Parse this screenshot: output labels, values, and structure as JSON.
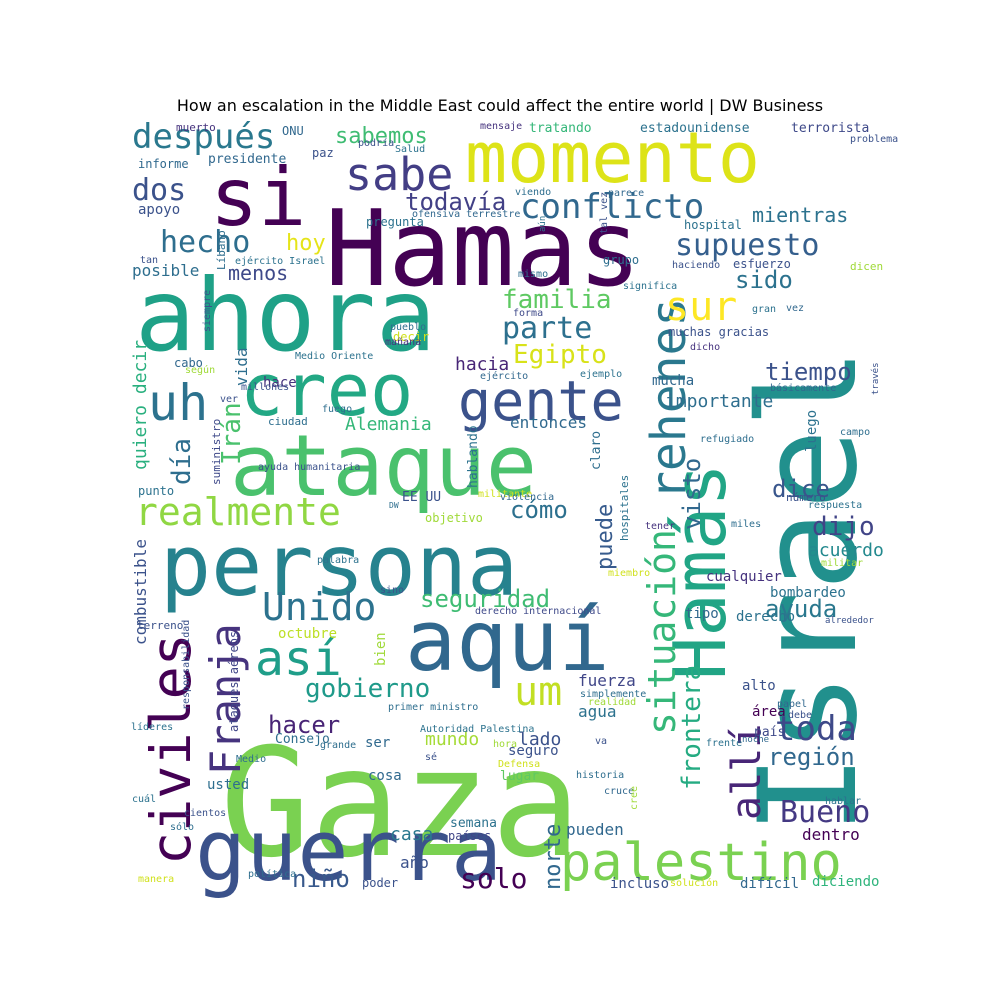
{
  "title": "How an escalation in the Middle East could affect the entire world | DW Business",
  "palette": [
    "#440154",
    "#46327e",
    "#365c8d",
    "#277f8e",
    "#1fa187",
    "#4ac16d",
    "#a0da39",
    "#fde725"
  ],
  "words": [
    {
      "text": "Gaza",
      "color": "#7ad151"
    },
    {
      "text": "Israel",
      "color": "#21908d"
    },
    {
      "text": "Hamas",
      "color": "#440154"
    },
    {
      "text": "ahora",
      "color": "#1fa187"
    },
    {
      "text": "persona",
      "color": "#26828e"
    },
    {
      "text": "guerra",
      "color": "#3b528b"
    },
    {
      "text": "ataque",
      "color": "#4ac16d"
    },
    {
      "text": "momento",
      "color": "#dde318"
    },
    {
      "text": "si",
      "color": "#440154"
    },
    {
      "text": "aquí",
      "color": "#31688e"
    },
    {
      "text": "Hamás",
      "color": "#21a585"
    },
    {
      "text": "creo",
      "color": "#22a884"
    },
    {
      "text": "palestino",
      "color": "#7ad151"
    },
    {
      "text": "civiles",
      "color": "#440154"
    },
    {
      "text": "rehenes",
      "color": "#2a788e"
    },
    {
      "text": "gente",
      "color": "#3b528b"
    },
    {
      "text": "uh",
      "color": "#2c728e"
    },
    {
      "text": "situación",
      "color": "#35b779"
    },
    {
      "text": "sabe",
      "color": "#433e85"
    },
    {
      "text": "realmente",
      "color": "#90d743"
    },
    {
      "text": "Unido",
      "color": "#2c728e"
    },
    {
      "text": "Franja",
      "color": "#46337e"
    },
    {
      "text": "así",
      "color": "#1f9e89"
    },
    {
      "text": "allí",
      "color": "#482677"
    },
    {
      "text": "um",
      "color": "#c2df23"
    },
    {
      "text": "sur",
      "color": "#fde725"
    },
    {
      "text": "toda",
      "color": "#3e4989"
    },
    {
      "text": "Bueno",
      "color": "#443983"
    },
    {
      "text": "conflicto",
      "color": "#31688e"
    },
    {
      "text": "después",
      "color": "#2a788e"
    },
    {
      "text": "supuesto",
      "color": "#355f8d"
    },
    {
      "text": "hecho",
      "color": "#2e6e8e"
    },
    {
      "text": "parte",
      "color": "#2d708e"
    },
    {
      "text": "familia",
      "color": "#5ec962"
    },
    {
      "text": "frontera",
      "color": "#25ab82"
    },
    {
      "text": "dos",
      "color": "#3b528b"
    },
    {
      "text": "gobierno",
      "color": "#1f9a8a"
    },
    {
      "text": "seguridad",
      "color": "#3fbc73"
    },
    {
      "text": "todavía",
      "color": "#424086"
    },
    {
      "text": "cómo",
      "color": "#2d708e"
    },
    {
      "text": "solo",
      "color": "#440154"
    },
    {
      "text": "ayuda",
      "color": "#2a788e"
    },
    {
      "text": "tiempo",
      "color": "#3b528b"
    },
    {
      "text": "hacer",
      "color": "#482475"
    },
    {
      "text": "dijo",
      "color": "#414487"
    },
    {
      "text": "visto",
      "color": "#31688e"
    },
    {
      "text": "día",
      "color": "#2e6e8e"
    },
    {
      "text": "Egipto",
      "color": "#d8e219"
    },
    {
      "text": "sabemos",
      "color": "#3fbc73"
    },
    {
      "text": "niño",
      "color": "#38598c"
    },
    {
      "text": "región",
      "color": "#31688e"
    },
    {
      "text": "sido",
      "color": "#2c728e"
    },
    {
      "text": "dice",
      "color": "#39568c"
    },
    {
      "text": "Irán",
      "color": "#4ac16d"
    },
    {
      "text": "puede",
      "color": "#375b8d"
    },
    {
      "text": "norte",
      "color": "#31688e"
    },
    {
      "text": "mientras",
      "color": "#2c728e"
    },
    {
      "text": "hoy",
      "color": "#e5e419"
    },
    {
      "text": "menos",
      "color": "#3e4989"
    },
    {
      "text": "Alemania",
      "color": "#35b779"
    },
    {
      "text": "mundo",
      "color": "#a5db36"
    },
    {
      "text": "lado",
      "color": "#3b528b"
    },
    {
      "text": "casa",
      "color": "#2a788e"
    },
    {
      "text": "hacia",
      "color": "#482677"
    },
    {
      "text": "importante",
      "color": "#2e6e8e"
    },
    {
      "text": "entonces",
      "color": "#30698e"
    },
    {
      "text": "acuerdo",
      "color": "#23898e"
    },
    {
      "text": "fuerza",
      "color": "#404688"
    },
    {
      "text": "pueden",
      "color": "#31688e"
    },
    {
      "text": "quiero decir",
      "color": "#2ab07f"
    },
    {
      "text": "combustible",
      "color": "#3b528b"
    },
    {
      "text": "vida",
      "color": "#2e6e8e"
    },
    {
      "text": "agua",
      "color": "#2c728e"
    },
    {
      "text": "dentro",
      "color": "#440154"
    },
    {
      "text": "octubre",
      "color": "#bddf26"
    },
    {
      "text": "posible",
      "color": "#2e6e8e"
    },
    {
      "text": "apoyo",
      "color": "#3b528b"
    },
    {
      "text": "mucha",
      "color": "#31688e"
    },
    {
      "text": "hace",
      "color": "#46337e"
    },
    {
      "text": "seguro",
      "color": "#3b528b"
    },
    {
      "text": "bien",
      "color": "#a0da39"
    },
    {
      "text": "cualquier",
      "color": "#46327e"
    },
    {
      "text": "año",
      "color": "#3b528b"
    },
    {
      "text": "tipo",
      "color": "#31688e"
    },
    {
      "text": "derecho",
      "color": "#2c728e"
    },
    {
      "text": "ser",
      "color": "#30698e"
    },
    {
      "text": "incluso",
      "color": "#3b528b"
    },
    {
      "text": "difícil",
      "color": "#31688e"
    },
    {
      "text": "diciendo",
      "color": "#2fb47c"
    },
    {
      "text": "usted",
      "color": "#2e6e8e"
    },
    {
      "text": "cosa",
      "color": "#30698e"
    },
    {
      "text": "luego",
      "color": "#2c728e"
    },
    {
      "text": "alto",
      "color": "#3b528b"
    },
    {
      "text": "bombardeo",
      "color": "#2c728e"
    },
    {
      "text": "Consejo",
      "color": "#2e6e8e"
    },
    {
      "text": "EE UU",
      "color": "#3b528b"
    },
    {
      "text": "hablando",
      "color": "#2c728e"
    },
    {
      "text": "claro",
      "color": "#2e6e8e"
    },
    {
      "text": "lugar",
      "color": "#5ec962"
    },
    {
      "text": "semana",
      "color": "#2c728e"
    },
    {
      "text": "países",
      "color": "#404688"
    },
    {
      "text": "país",
      "color": "#3e4989"
    },
    {
      "text": "área",
      "color": "#440154"
    },
    {
      "text": "tratando",
      "color": "#35b779"
    },
    {
      "text": "estadounidense",
      "color": "#2c728e"
    },
    {
      "text": "terrorista",
      "color": "#3e4989"
    },
    {
      "text": "presidente",
      "color": "#31688e"
    },
    {
      "text": "informe",
      "color": "#30698e"
    },
    {
      "text": "muerto",
      "color": "#46337e"
    },
    {
      "text": "ONU",
      "color": "#31688e"
    },
    {
      "text": "paz",
      "color": "#3b528b"
    },
    {
      "text": "pregunta",
      "color": "#2c728e"
    },
    {
      "text": "grupo",
      "color": "#2e6e8e"
    },
    {
      "text": "hospital",
      "color": "#2c728e"
    },
    {
      "text": "esfuerzo",
      "color": "#3b528b"
    },
    {
      "text": "dicen",
      "color": "#a0da39"
    },
    {
      "text": "muchas gracias",
      "color": "#3b528b"
    },
    {
      "text": "cabo",
      "color": "#31688e"
    },
    {
      "text": "decir",
      "color": "#d0e11c"
    },
    {
      "text": "ciudad",
      "color": "#2e6e8e"
    },
    {
      "text": "suministro",
      "color": "#3e4989"
    },
    {
      "text": "punto",
      "color": "#2c728e"
    },
    {
      "text": "terreno",
      "color": "#3b528b"
    },
    {
      "text": "ataques aéreos",
      "color": "#404688"
    },
    {
      "text": "objetivo",
      "color": "#a0da39"
    },
    {
      "text": "hospitales",
      "color": "#2c728e"
    },
    {
      "text": "número",
      "color": "#3b528b"
    },
    {
      "text": "refugiado",
      "color": "#2e6e8e"
    },
    {
      "text": "respuesta",
      "color": "#2c728e"
    },
    {
      "text": "miles",
      "color": "#2e6e8e"
    },
    {
      "text": "tener",
      "color": "#46337e"
    },
    {
      "text": "militar",
      "color": "#a0da39"
    },
    {
      "text": "alrededor",
      "color": "#3b528b"
    },
    {
      "text": "básicamente",
      "color": "#31688e"
    },
    {
      "text": "campo",
      "color": "#2e6e8e"
    },
    {
      "text": "través",
      "color": "#3b528b"
    },
    {
      "text": "gran",
      "color": "#2c728e"
    },
    {
      "text": "vez",
      "color": "#31688e"
    },
    {
      "text": "dicho",
      "color": "#46337e"
    },
    {
      "text": "haciendo",
      "color": "#3b528b"
    },
    {
      "text": "significa",
      "color": "#2c728e"
    },
    {
      "text": "forma",
      "color": "#3e4989"
    },
    {
      "text": "mismo",
      "color": "#2e6e8e"
    },
    {
      "text": "tal vez",
      "color": "#3b528b"
    },
    {
      "text": "parece",
      "color": "#31688e"
    },
    {
      "text": "problema",
      "color": "#3b528b"
    },
    {
      "text": "mensaje",
      "color": "#46337e"
    },
    {
      "text": "Salud",
      "color": "#2c728e"
    },
    {
      "text": "podría",
      "color": "#3b528b"
    },
    {
      "text": "viendo",
      "color": "#2e6e8e"
    },
    {
      "text": "ofensiva terrestre",
      "color": "#31688e"
    },
    {
      "text": "aún",
      "color": "#2c728e"
    },
    {
      "text": "Líbano",
      "color": "#2e6e8e"
    },
    {
      "text": "tan",
      "color": "#3b528b"
    },
    {
      "text": "ejército Israel",
      "color": "#2c728e"
    },
    {
      "text": "siempre",
      "color": "#3b528b"
    },
    {
      "text": "mañana",
      "color": "#46337e"
    },
    {
      "text": "pueblo",
      "color": "#2e6e8e"
    },
    {
      "text": "millones",
      "color": "#3b528b"
    },
    {
      "text": "Medio Oriente",
      "color": "#2c728e"
    },
    {
      "text": "según",
      "color": "#a0da39"
    },
    {
      "text": "ver",
      "color": "#3b528b"
    },
    {
      "text": "fuego",
      "color": "#2e6e8e"
    },
    {
      "text": "ejército",
      "color": "#31688e"
    },
    {
      "text": "ejemplo",
      "color": "#2c728e"
    },
    {
      "text": "ayuda humanitaria",
      "color": "#3b528b"
    },
    {
      "text": "DW",
      "color": "#2e6e8e"
    },
    {
      "text": "militante",
      "color": "#d0e11c"
    },
    {
      "text": "palabra",
      "color": "#2c728e"
    },
    {
      "text": "sino",
      "color": "#3b528b"
    },
    {
      "text": "derecho internacional",
      "color": "#3e4989"
    },
    {
      "text": "miembro",
      "color": "#d0e11c"
    },
    {
      "text": "primer ministro",
      "color": "#2e6e8e"
    },
    {
      "text": "responsabilidad",
      "color": "#3b528b"
    },
    {
      "text": "Autoridad Palestina",
      "color": "#2c728e"
    },
    {
      "text": "simplemente",
      "color": "#2e6e8e"
    },
    {
      "text": "realidad",
      "color": "#a0da39"
    },
    {
      "text": "papel",
      "color": "#31688e"
    },
    {
      "text": "debe",
      "color": "#3b528b"
    },
    {
      "text": "líderes",
      "color": "#2c728e"
    },
    {
      "text": "grande",
      "color": "#2e6e8e"
    },
    {
      "text": "hora",
      "color": "#a0da39"
    },
    {
      "text": "va",
      "color": "#3b528b"
    },
    {
      "text": "frente",
      "color": "#2c728e"
    },
    {
      "text": "noche",
      "color": "#31688e"
    },
    {
      "text": "Medio",
      "color": "#2e6e8e"
    },
    {
      "text": "sé",
      "color": "#3b528b"
    },
    {
      "text": "Defensa",
      "color": "#d0e11c"
    },
    {
      "text": "historia",
      "color": "#2e6e8e"
    },
    {
      "text": "cruce",
      "color": "#31688e"
    },
    {
      "text": "cuál",
      "color": "#2c728e"
    },
    {
      "text": "cientos",
      "color": "#3b528b"
    },
    {
      "text": "sólo",
      "color": "#2e6e8e"
    },
    {
      "text": "cree",
      "color": "#a0da39"
    },
    {
      "text": "hablar",
      "color": "#2c728e"
    },
    {
      "text": "manera",
      "color": "#d0e11c"
    },
    {
      "text": "política",
      "color": "#2e6e8e"
    },
    {
      "text": "poder",
      "color": "#3b528b"
    },
    {
      "text": "solución",
      "color": "#d0e11c"
    },
    {
      "text": "violencia",
      "color": "#31688e"
    }
  ]
}
